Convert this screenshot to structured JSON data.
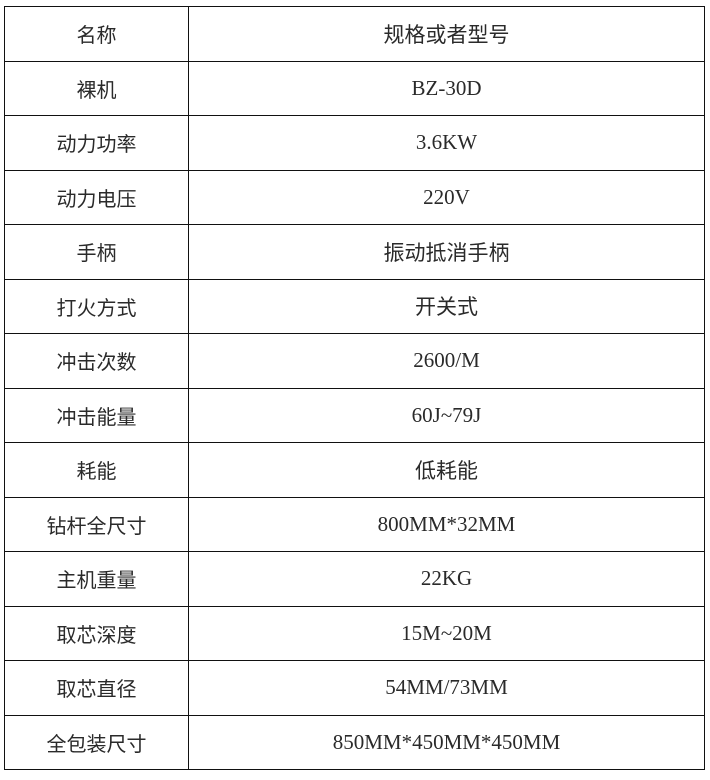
{
  "table": {
    "header": {
      "name": "名称",
      "value": "规格或者型号"
    },
    "rows": [
      {
        "name": "裸机",
        "value": "BZ-30D"
      },
      {
        "name": "动力功率",
        "value": "3.6KW"
      },
      {
        "name": "动力电压",
        "value": "220V"
      },
      {
        "name": "手柄",
        "value": "振动抵消手柄"
      },
      {
        "name": "打火方式",
        "value": "开关式"
      },
      {
        "name": "冲击次数",
        "value": "2600/M"
      },
      {
        "name": "冲击能量",
        "value": "60J~79J"
      },
      {
        "name": "耗能",
        "value": "低耗能"
      },
      {
        "name": "钻杆全尺寸",
        "value": "800MM*32MM"
      },
      {
        "name": "主机重量",
        "value": "22KG"
      },
      {
        "name": "取芯深度",
        "value": "15M~20M"
      },
      {
        "name": "取芯直径",
        "value": "54MM/73MM"
      },
      {
        "name": "全包装尺寸",
        "value": "850MM*450MM*450MM"
      }
    ]
  }
}
